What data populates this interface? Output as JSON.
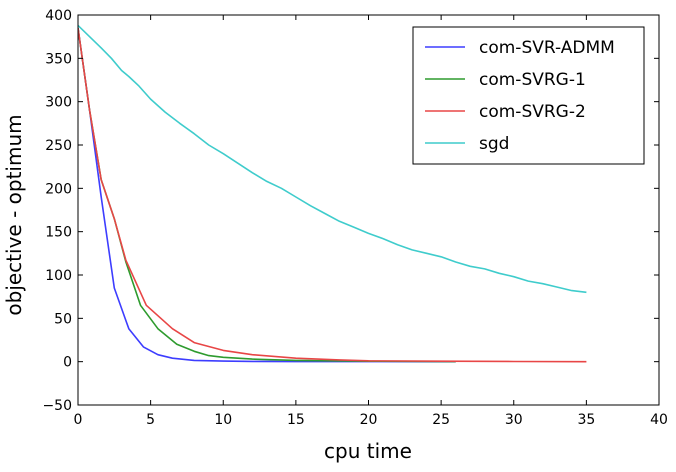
{
  "chart_data": {
    "type": "line",
    "title": "",
    "xlabel": "cpu time",
    "ylabel": "objective - optimum",
    "xlim": [
      0,
      40
    ],
    "ylim": [
      -50,
      400
    ],
    "xticks": [
      0,
      5,
      10,
      15,
      20,
      25,
      30,
      35,
      40
    ],
    "yticks": [
      -50,
      0,
      50,
      100,
      150,
      200,
      250,
      300,
      350,
      400
    ],
    "grid": false,
    "legend_position": "top-right",
    "series": [
      {
        "name": "com-SVR-ADMM",
        "color": "#3d3dff",
        "points": [
          [
            0,
            385
          ],
          [
            0.8,
            290
          ],
          [
            1.6,
            190
          ],
          [
            2.5,
            85
          ],
          [
            3.5,
            38
          ],
          [
            4.5,
            17
          ],
          [
            5.5,
            8
          ],
          [
            6.5,
            4
          ],
          [
            8,
            1.5
          ],
          [
            10,
            0.6
          ],
          [
            12,
            0.3
          ],
          [
            15,
            0.1
          ],
          [
            20,
            0.05
          ],
          [
            26,
            0
          ]
        ]
      },
      {
        "name": "com-SVRG-1",
        "color": "#2e9b2e",
        "points": [
          [
            0,
            385
          ],
          [
            0.8,
            290
          ],
          [
            1.6,
            210
          ],
          [
            2.5,
            165
          ],
          [
            3.3,
            115
          ],
          [
            4.3,
            65
          ],
          [
            5.5,
            38
          ],
          [
            6.8,
            20
          ],
          [
            8,
            12
          ],
          [
            9,
            7
          ],
          [
            10,
            5
          ],
          [
            12,
            3
          ],
          [
            15,
            1.5
          ],
          [
            20,
            0.5
          ],
          [
            26,
            0.1
          ]
        ]
      },
      {
        "name": "com-SVRG-2",
        "color": "#e84646",
        "points": [
          [
            0,
            385
          ],
          [
            0.8,
            290
          ],
          [
            1.6,
            210
          ],
          [
            2.5,
            165
          ],
          [
            3.3,
            117
          ],
          [
            4.7,
            65
          ],
          [
            6.5,
            38
          ],
          [
            8,
            22
          ],
          [
            10,
            13
          ],
          [
            12,
            8
          ],
          [
            15,
            4
          ],
          [
            18,
            2
          ],
          [
            20,
            1
          ],
          [
            25,
            0.5
          ],
          [
            30,
            0.2
          ],
          [
            35,
            0
          ]
        ]
      },
      {
        "name": "sgd",
        "color": "#3fcccc",
        "points": [
          [
            0,
            388
          ],
          [
            0.8,
            375
          ],
          [
            1.6,
            362
          ],
          [
            2.3,
            350
          ],
          [
            3,
            336
          ],
          [
            3.5,
            329
          ],
          [
            4.2,
            318
          ],
          [
            5,
            303
          ],
          [
            6,
            288
          ],
          [
            7,
            275
          ],
          [
            8,
            263
          ],
          [
            9,
            250
          ],
          [
            10,
            240
          ],
          [
            11,
            229
          ],
          [
            12,
            218
          ],
          [
            13,
            208
          ],
          [
            14,
            200
          ],
          [
            15,
            190
          ],
          [
            16,
            180
          ],
          [
            17,
            171
          ],
          [
            18,
            162
          ],
          [
            19,
            155
          ],
          [
            20,
            148
          ],
          [
            21,
            142
          ],
          [
            22,
            135
          ],
          [
            23,
            129
          ],
          [
            24,
            125
          ],
          [
            25,
            121
          ],
          [
            26,
            115
          ],
          [
            27,
            110
          ],
          [
            28,
            107
          ],
          [
            29,
            102
          ],
          [
            30,
            98
          ],
          [
            31,
            93
          ],
          [
            32,
            90
          ],
          [
            33,
            86
          ],
          [
            34,
            82
          ],
          [
            35,
            80
          ]
        ]
      }
    ]
  }
}
